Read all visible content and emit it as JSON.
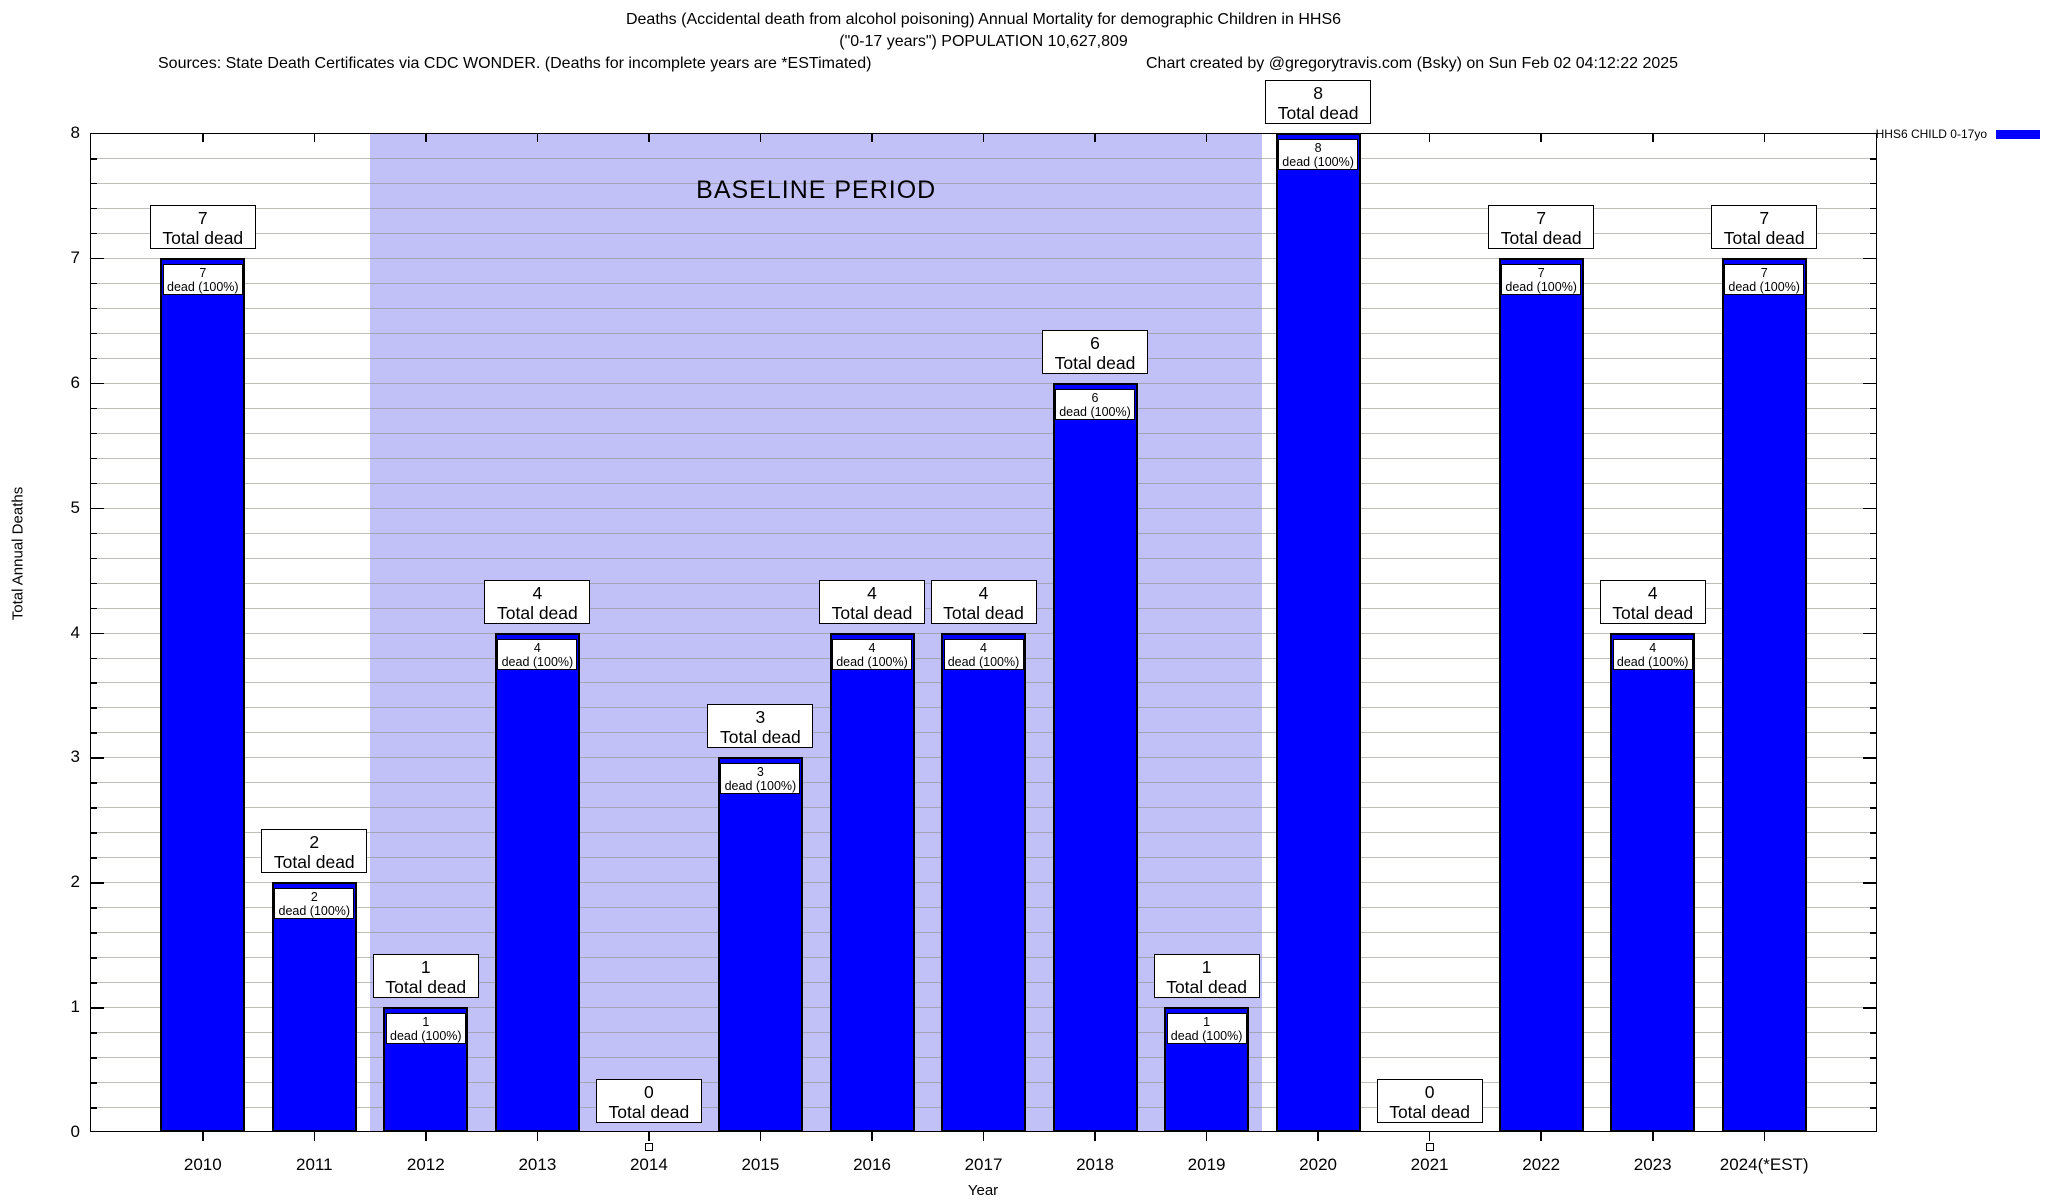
{
  "header": {
    "title_line1": "Deaths (Accidental death from alcohol poisoning) Annual Mortality for demographic Children in HHS6",
    "title_line2": "(\"0-17 years\") POPULATION 10,627,809",
    "source_left": "Sources: State Death Certificates via CDC WONDER. (Deaths for incomplete years are *ESTimated)",
    "credit_right": "Chart created by @gregorytravis.com (Bsky) on Sun Feb 02 04:12:22 2025"
  },
  "legend": {
    "label": "HHS6 CHILD 0-17yo",
    "color": "#0000ff"
  },
  "chart_data": {
    "type": "bar",
    "title": "Deaths (Accidental death from alcohol poisoning) Annual Mortality for demographic Children in HHS6 (\"0-17 years\") POPULATION 10,627,809",
    "xlabel": "Year",
    "ylabel": "Total Annual Deaths",
    "ylim": [
      0,
      8
    ],
    "y_major_ticks": [
      0,
      1,
      2,
      3,
      4,
      5,
      6,
      7,
      8
    ],
    "y_minor_step": 0.2,
    "grid": "minor horizontal gridlines every 0.2, light gray",
    "legend_position": "top-right outside plot",
    "bar_color": "#0000ff",
    "categories": [
      "2010",
      "2011",
      "2012",
      "2013",
      "2014",
      "2015",
      "2016",
      "2017",
      "2018",
      "2019",
      "2020",
      "2021",
      "2022",
      "2023",
      "2024(*EST)"
    ],
    "values": [
      7,
      2,
      1,
      4,
      0,
      3,
      4,
      4,
      6,
      1,
      8,
      0,
      7,
      4,
      7
    ],
    "bar_top_label_line2": "Total dead",
    "inner_label_line2": "dead (100%)",
    "zero_years": [
      "2014",
      "2021"
    ],
    "baseline_period": {
      "label": "BASELINE PERIOD",
      "start_category": "2012",
      "end_category": "2019",
      "color": "#c1c1f8"
    }
  }
}
